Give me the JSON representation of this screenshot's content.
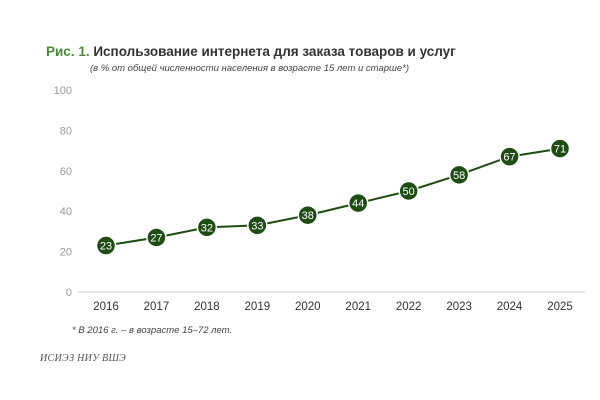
{
  "chart_data": {
    "type": "line",
    "title_prefix": "Рис. 1.",
    "title": "Использование интернета для заказа товаров и услуг",
    "subtitle": "(в % от общей численности населения в возрасте 15 лет и старше*)",
    "categories": [
      "2016",
      "2017",
      "2018",
      "2019",
      "2020",
      "2021",
      "2022",
      "2023",
      "2024",
      "2025"
    ],
    "values": [
      23,
      27,
      32,
      33,
      38,
      44,
      50,
      58,
      67,
      71
    ],
    "ylim": [
      0,
      100
    ],
    "yticks": [
      0,
      20,
      40,
      60,
      80,
      100
    ],
    "grid": false,
    "marker_color": "#1e4d14",
    "line_color": "#1e4d14",
    "title_accent_color": "#4a8a35"
  },
  "footnote": "* В 2016 г. – в возрасте 15–72 лет.",
  "source": "ИСИЭЗ НИУ ВШЭ"
}
